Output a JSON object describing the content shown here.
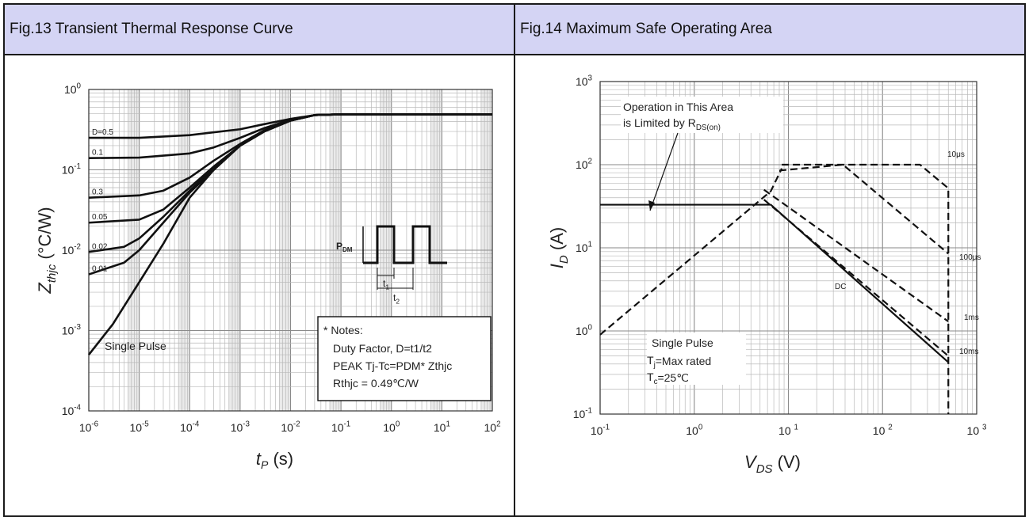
{
  "figures": [
    {
      "title": "Fig.13 Transient Thermal Response Curve"
    },
    {
      "title": "Fig.14 Maximum Safe Operating Area"
    }
  ],
  "chart_data": [
    {
      "type": "line",
      "title": "Fig.13 Transient Thermal Response Curve",
      "xlabel": "tP (s)",
      "ylabel": "Zthjc (°C/W)",
      "x_scale": "log",
      "y_scale": "log",
      "xlim": [
        1e-06,
        100
      ],
      "ylim": [
        0.0001,
        1
      ],
      "grid": true,
      "x_tick_labels": [
        "10-6",
        "10-5",
        "10-4",
        "10-3",
        "10-2",
        "10-1",
        "100",
        "101",
        "102"
      ],
      "y_tick_labels": [
        "10-4",
        "10-3",
        "10-2",
        "10-1",
        "100"
      ],
      "series": [
        {
          "name": "D=0.5",
          "points": [
            [
              1e-06,
              0.25
            ],
            [
              1e-05,
              0.25
            ],
            [
              0.0001,
              0.27
            ],
            [
              0.001,
              0.32
            ],
            [
              0.003,
              0.37
            ],
            [
              0.01,
              0.43
            ],
            [
              0.03,
              0.48
            ],
            [
              0.1,
              0.49
            ],
            [
              100,
              0.49
            ]
          ]
        },
        {
          "name": "0.1",
          "points": [
            [
              1e-06,
              0.14
            ],
            [
              1e-05,
              0.142
            ],
            [
              0.0001,
              0.16
            ],
            [
              0.0003,
              0.19
            ],
            [
              0.001,
              0.25
            ],
            [
              0.003,
              0.33
            ],
            [
              0.01,
              0.42
            ],
            [
              0.03,
              0.48
            ],
            [
              0.1,
              0.49
            ],
            [
              100,
              0.49
            ]
          ]
        },
        {
          "name": "0.3",
          "points": [
            [
              1e-06,
              0.045
            ],
            [
              1e-05,
              0.048
            ],
            [
              3e-05,
              0.055
            ],
            [
              0.0001,
              0.08
            ],
            [
              0.0003,
              0.13
            ],
            [
              0.001,
              0.21
            ],
            [
              0.003,
              0.31
            ],
            [
              0.01,
              0.41
            ],
            [
              0.03,
              0.48
            ],
            [
              0.1,
              0.49
            ],
            [
              100,
              0.49
            ]
          ]
        },
        {
          "name": "0.05",
          "points": [
            [
              1e-06,
              0.022
            ],
            [
              1e-05,
              0.024
            ],
            [
              3e-05,
              0.032
            ],
            [
              0.0001,
              0.06
            ],
            [
              0.0003,
              0.11
            ],
            [
              0.001,
              0.2
            ],
            [
              0.003,
              0.3
            ],
            [
              0.01,
              0.41
            ],
            [
              0.03,
              0.48
            ],
            [
              0.1,
              0.49
            ],
            [
              100,
              0.49
            ]
          ]
        },
        {
          "name": "0.02",
          "points": [
            [
              1e-06,
              0.0095
            ],
            [
              5e-06,
              0.011
            ],
            [
              1e-05,
              0.014
            ],
            [
              3e-05,
              0.026
            ],
            [
              0.0001,
              0.055
            ],
            [
              0.0003,
              0.105
            ],
            [
              0.001,
              0.2
            ],
            [
              0.003,
              0.3
            ],
            [
              0.01,
              0.41
            ],
            [
              0.03,
              0.48
            ],
            [
              0.1,
              0.49
            ],
            [
              100,
              0.49
            ]
          ]
        },
        {
          "name": "0.01",
          "points": [
            [
              1e-06,
              0.005
            ],
            [
              5e-06,
              0.007
            ],
            [
              1e-05,
              0.01
            ],
            [
              3e-05,
              0.022
            ],
            [
              0.0001,
              0.052
            ],
            [
              0.0003,
              0.1
            ],
            [
              0.001,
              0.2
            ],
            [
              0.003,
              0.3
            ],
            [
              0.01,
              0.41
            ],
            [
              0.03,
              0.48
            ],
            [
              0.1,
              0.49
            ],
            [
              100,
              0.49
            ]
          ]
        },
        {
          "name": "Single Pulse",
          "points": [
            [
              1e-06,
              0.0005
            ],
            [
              3e-06,
              0.0012
            ],
            [
              1e-05,
              0.004
            ],
            [
              3e-05,
              0.012
            ],
            [
              0.0001,
              0.045
            ],
            [
              0.0003,
              0.1
            ],
            [
              0.001,
              0.2
            ],
            [
              0.003,
              0.3
            ],
            [
              0.01,
              0.41
            ],
            [
              0.03,
              0.48
            ],
            [
              0.1,
              0.49
            ],
            [
              100,
              0.49
            ]
          ]
        }
      ],
      "annotations": {
        "pulse": {
          "pdm": "PDM",
          "t1": "t1",
          "t2": "t2"
        },
        "notes": {
          "heading": "* Notes:",
          "line1": "Duty Factor, D=t1/t2",
          "line2": "PEAK Tj-Tc=PDM* Zthjc",
          "line3": "Rthjc = 0.49℃/W"
        }
      }
    },
    {
      "type": "line",
      "title": "Fig.14 Maximum Safe Operating Area",
      "xlabel": "VDS (V)",
      "ylabel": "ID (A)",
      "x_scale": "log",
      "y_scale": "log",
      "xlim": [
        0.1,
        1000
      ],
      "ylim": [
        0.1,
        1000
      ],
      "grid": true,
      "x_tick_labels": [
        "10-1",
        "100",
        "10 1",
        "10 2",
        "10 3"
      ],
      "y_tick_labels": [
        "10-1",
        "100",
        "101",
        "102",
        "103"
      ],
      "series": [
        {
          "name": "10μs",
          "style": "dashed",
          "points": [
            [
              8.5,
              100
            ],
            [
              250,
              100
            ],
            [
              500,
              52
            ],
            [
              500,
              0.1
            ]
          ]
        },
        {
          "name": "100μs",
          "style": "dashed",
          "points": [
            [
              8,
              85
            ],
            [
              38,
              100
            ],
            [
              500,
              8.5
            ]
          ]
        },
        {
          "name": "1ms",
          "style": "dashed",
          "points": [
            [
              5.5,
              50
            ],
            [
              500,
              1.3
            ]
          ]
        },
        {
          "name": "10ms",
          "style": "dashed",
          "points": [
            [
              5.5,
              38
            ],
            [
              500,
              0.5
            ]
          ]
        },
        {
          "name": "DC",
          "style": "solid",
          "points": [
            [
              0.1,
              33
            ],
            [
              6.5,
              33
            ],
            [
              500,
              0.42
            ]
          ]
        },
        {
          "name": "RDS(on) limit",
          "style": "dashed",
          "points": [
            [
              0.1,
              0.9
            ],
            [
              6.5,
              48
            ],
            [
              8.5,
              90
            ]
          ]
        }
      ],
      "annotations": {
        "limit_line1": "Operation in This Area",
        "limit_line2": "is Limited by RDS(on)",
        "cond1": "Single Pulse",
        "cond2": "Tj=Max rated",
        "cond3": "Tc=25℃"
      }
    }
  ]
}
